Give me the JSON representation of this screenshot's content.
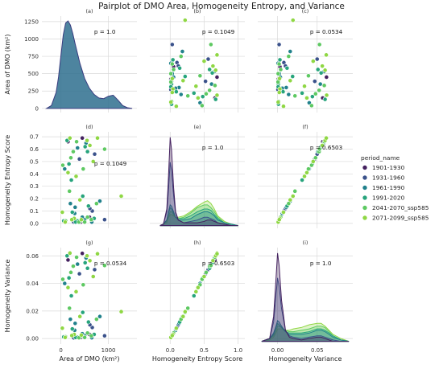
{
  "title": "Pairplot of DMO Area, Homogeneity Entropy, and Variance",
  "colors": {
    "kde": "#2e6e8e",
    "kde_line": "#3a3d80",
    "grid": "#d9d9d9",
    "series": [
      "#44215f",
      "#3b528b",
      "#21818c",
      "#27a47c",
      "#5ec962",
      "#8fd744"
    ]
  },
  "legend": {
    "title": "period_name",
    "items": [
      "1901-1930",
      "1931-1960",
      "1961-1990",
      "1991-2020",
      "2041-2070_ssp585",
      "2071-2099_ssp585"
    ]
  },
  "chart_data": {
    "type": "scatter",
    "variables": [
      "Area of DMO (km²)",
      "Homogeneity Entropy Score",
      "Homogeneity Variance"
    ],
    "rows": [
      {
        "ylabel": "Area of DMO (km²)",
        "yticks": [
          "0",
          "250",
          "500",
          "750",
          "1000",
          "1250"
        ],
        "ylim": [
          -60,
          1330
        ]
      },
      {
        "ylabel": "Homogeneity Entropy Score",
        "yticks": [
          "0.0",
          "0.1",
          "0.2",
          "0.3",
          "0.4",
          "0.5",
          "0.6",
          "0.7"
        ],
        "ylim": [
          -0.04,
          0.74
        ]
      },
      {
        "ylabel": "Homogeneity Variance",
        "yticks": [
          "0.00",
          "0.02",
          "0.04",
          "0.06"
        ],
        "ylim": [
          -0.004,
          0.066
        ]
      }
    ],
    "columns": [
      {
        "xlabel": "Area of DMO (km²)",
        "xticks": [
          "0",
          "1000"
        ],
        "xlim": [
          -400,
          1600
        ]
      },
      {
        "xlabel": "Homogeneity Entropy Score",
        "xticks": [
          "0.0",
          "0.5",
          "1.0"
        ],
        "xlim": [
          -0.3,
          1.1
        ]
      },
      {
        "xlabel": "Homogeneity Variance",
        "xticks": [
          "0.00",
          "0.05"
        ],
        "xlim": [
          -0.025,
          0.095
        ]
      }
    ],
    "panels": [
      {
        "label": "(a)",
        "annotation": "p = 1.0"
      },
      {
        "label": "(b)",
        "annotation": "p = 0.1049"
      },
      {
        "label": "(c)",
        "annotation": "p = 0.0534"
      },
      {
        "label": "(d)",
        "annotation": "p = 0.1049"
      },
      {
        "label": "(e)",
        "annotation": "p = 1.0"
      },
      {
        "label": "(f)",
        "annotation": "p = 0.6503"
      },
      {
        "label": "(g)",
        "annotation": "p = 0.0534"
      },
      {
        "label": "(h)",
        "annotation": "p = 0.6503"
      },
      {
        "label": "(i)",
        "annotation": "p = 1.0"
      }
    ],
    "kde_area": {
      "x": [
        -300,
        -200,
        -100,
        -50,
        0,
        50,
        100,
        150,
        200,
        250,
        300,
        400,
        500,
        600,
        700,
        800,
        900,
        1000,
        1100,
        1200,
        1300,
        1400,
        1500
      ],
      "y": [
        0,
        40,
        230,
        450,
        760,
        1060,
        1230,
        1260,
        1200,
        1080,
        930,
        650,
        430,
        290,
        200,
        150,
        140,
        175,
        190,
        120,
        40,
        10,
        0
      ]
    },
    "kde_entropy": {
      "x": [
        -0.15,
        -0.1,
        -0.05,
        -0.03,
        0,
        0.02,
        0.05,
        0.08,
        0.12,
        0.2,
        0.3,
        0.4,
        0.5,
        0.55,
        0.6,
        0.65,
        0.7,
        0.8,
        0.9,
        1.0
      ],
      "series": [
        {
          "values": [
            0,
            0.01,
            0.12,
            0.3,
            0.64,
            0.55,
            0.28,
            0.1,
            0.04,
            0.02,
            0.02,
            0.02,
            0.03,
            0.04,
            0.04,
            0.03,
            0.02,
            0.01,
            0,
            0
          ]
        },
        {
          "values": [
            0,
            0.01,
            0.1,
            0.22,
            0.46,
            0.4,
            0.22,
            0.09,
            0.04,
            0.02,
            0.03,
            0.04,
            0.06,
            0.06,
            0.05,
            0.04,
            0.02,
            0.01,
            0,
            0
          ]
        },
        {
          "values": [
            0,
            0.01,
            0.04,
            0.09,
            0.15,
            0.14,
            0.1,
            0.06,
            0.04,
            0.04,
            0.05,
            0.08,
            0.1,
            0.1,
            0.09,
            0.07,
            0.04,
            0.02,
            0.01,
            0
          ]
        },
        {
          "values": [
            0,
            0.01,
            0.04,
            0.08,
            0.13,
            0.12,
            0.09,
            0.06,
            0.05,
            0.05,
            0.07,
            0.1,
            0.12,
            0.12,
            0.11,
            0.08,
            0.05,
            0.02,
            0.01,
            0
          ]
        },
        {
          "values": [
            0,
            0.01,
            0.03,
            0.06,
            0.1,
            0.1,
            0.08,
            0.06,
            0.05,
            0.06,
            0.09,
            0.13,
            0.15,
            0.15,
            0.13,
            0.1,
            0.06,
            0.02,
            0.01,
            0
          ]
        },
        {
          "values": [
            0,
            0.01,
            0.02,
            0.05,
            0.08,
            0.08,
            0.07,
            0.06,
            0.06,
            0.07,
            0.1,
            0.14,
            0.17,
            0.18,
            0.16,
            0.12,
            0.07,
            0.03,
            0.01,
            0
          ]
        }
      ]
    },
    "kde_variance": {
      "x": [
        -0.02,
        -0.01,
        -0.005,
        -0.002,
        0,
        0.002,
        0.005,
        0.01,
        0.015,
        0.02,
        0.03,
        0.04,
        0.05,
        0.055,
        0.06,
        0.065,
        0.07,
        0.08,
        0.09
      ],
      "series": [
        {
          "values": [
            0,
            0.02,
            0.18,
            0.45,
            0.64,
            0.55,
            0.3,
            0.08,
            0.03,
            0.02,
            0.01,
            0.02,
            0.03,
            0.03,
            0.02,
            0.01,
            0,
            0,
            0
          ]
        },
        {
          "values": [
            0,
            0.02,
            0.14,
            0.33,
            0.46,
            0.4,
            0.24,
            0.08,
            0.04,
            0.03,
            0.02,
            0.03,
            0.04,
            0.04,
            0.03,
            0.02,
            0.01,
            0,
            0
          ]
        },
        {
          "values": [
            0,
            0.02,
            0.06,
            0.11,
            0.15,
            0.14,
            0.11,
            0.07,
            0.05,
            0.05,
            0.05,
            0.06,
            0.08,
            0.08,
            0.07,
            0.05,
            0.03,
            0.01,
            0
          ]
        },
        {
          "values": [
            0,
            0.02,
            0.05,
            0.1,
            0.13,
            0.12,
            0.1,
            0.07,
            0.06,
            0.06,
            0.06,
            0.07,
            0.09,
            0.09,
            0.08,
            0.06,
            0.04,
            0.01,
            0
          ]
        },
        {
          "values": [
            0,
            0.02,
            0.04,
            0.08,
            0.11,
            0.11,
            0.1,
            0.08,
            0.07,
            0.07,
            0.08,
            0.09,
            0.11,
            0.11,
            0.1,
            0.07,
            0.04,
            0.01,
            0
          ]
        },
        {
          "values": [
            0,
            0.01,
            0.03,
            0.06,
            0.09,
            0.09,
            0.09,
            0.08,
            0.08,
            0.09,
            0.1,
            0.12,
            0.13,
            0.13,
            0.11,
            0.08,
            0.05,
            0.02,
            0
          ]
        }
      ]
    },
    "points": [
      {
        "period": 0,
        "area": 450,
        "entropy": 0.69,
        "variance": 0.0618
      },
      {
        "period": 0,
        "area": 600,
        "entropy": 0.05,
        "variance": 0.003
      },
      {
        "period": 0,
        "area": 150,
        "entropy": 0.66,
        "variance": 0.057
      },
      {
        "period": 0,
        "area": 420,
        "entropy": 0.01,
        "variance": 0.0008
      },
      {
        "period": 1,
        "area": 390,
        "entropy": 0.52,
        "variance": 0.047
      },
      {
        "period": 1,
        "area": 920,
        "entropy": 0.03,
        "variance": 0.002
      },
      {
        "period": 1,
        "area": 660,
        "entropy": 0.1,
        "variance": 0.008
      },
      {
        "period": 1,
        "area": 400,
        "entropy": 0.02,
        "variance": 0.0015
      },
      {
        "period": 1,
        "area": 710,
        "entropy": 0.56,
        "variance": 0.05
      },
      {
        "period": 1,
        "area": 270,
        "entropy": 0.01,
        "variance": 0.0005
      },
      {
        "period": 1,
        "area": 610,
        "entropy": 0.12,
        "variance": 0.01
      },
      {
        "period": 2,
        "area": 300,
        "entropy": 0.13,
        "variance": 0.011
      },
      {
        "period": 2,
        "area": 350,
        "entropy": 0.61,
        "variance": 0.054
      },
      {
        "period": 2,
        "area": 500,
        "entropy": 0.03,
        "variance": 0.0022
      },
      {
        "period": 2,
        "area": 80,
        "entropy": 0.44,
        "variance": 0.04
      },
      {
        "period": 2,
        "area": 390,
        "entropy": 0.02,
        "variance": 0.0012
      },
      {
        "period": 2,
        "area": 530,
        "entropy": 0.65,
        "variance": 0.0585
      },
      {
        "period": 2,
        "area": 200,
        "entropy": 0.16,
        "variance": 0.014
      },
      {
        "period": 2,
        "area": 450,
        "entropy": 0.05,
        "variance": 0.0035
      },
      {
        "period": 2,
        "area": 820,
        "entropy": 0.18,
        "variance": 0.016
      },
      {
        "period": 2,
        "area": 290,
        "entropy": 0.08,
        "variance": 0.006
      },
      {
        "period": 2,
        "area": 650,
        "entropy": 0.01,
        "variance": 0.0006
      },
      {
        "period": 3,
        "area": 170,
        "entropy": 0.48,
        "variance": 0.044
      },
      {
        "period": 3,
        "area": 410,
        "entropy": 0.02,
        "variance": 0.0015
      },
      {
        "period": 3,
        "area": 560,
        "entropy": 0.58,
        "variance": 0.051
      },
      {
        "period": 3,
        "area": 240,
        "entropy": 0.09,
        "variance": 0.007
      },
      {
        "period": 3,
        "area": 350,
        "entropy": 0.02,
        "variance": 0.001
      },
      {
        "period": 3,
        "area": 130,
        "entropy": 0.67,
        "variance": 0.06
      },
      {
        "period": 3,
        "area": 700,
        "entropy": 0.04,
        "variance": 0.003
      },
      {
        "period": 3,
        "area": 460,
        "entropy": 0.22,
        "variance": 0.019
      },
      {
        "period": 3,
        "area": 310,
        "entropy": 0.01,
        "variance": 0.0008
      },
      {
        "period": 3,
        "area": 220,
        "entropy": 0.35,
        "variance": 0.031
      },
      {
        "period": 3,
        "area": 580,
        "entropy": 0.14,
        "variance": 0.012
      },
      {
        "period": 3,
        "area": 60,
        "entropy": 0.02,
        "variance": 0.0012
      },
      {
        "period": 3,
        "area": 510,
        "entropy": 0.62,
        "variance": 0.055
      },
      {
        "period": 4,
        "area": 40,
        "entropy": 0.47,
        "variance": 0.043
      },
      {
        "period": 4,
        "area": 500,
        "entropy": 0.01,
        "variance": 0.0008
      },
      {
        "period": 4,
        "area": 330,
        "entropy": 0.66,
        "variance": 0.059
      },
      {
        "period": 4,
        "area": 180,
        "entropy": 0.26,
        "variance": 0.022
      },
      {
        "period": 4,
        "area": 640,
        "entropy": 0.03,
        "variance": 0.002
      },
      {
        "period": 4,
        "area": 210,
        "entropy": 0.53,
        "variance": 0.048
      },
      {
        "period": 4,
        "area": 750,
        "entropy": 0.16,
        "variance": 0.014
      },
      {
        "period": 4,
        "area": 100,
        "entropy": 0.02,
        "variance": 0.0013
      },
      {
        "period": 4,
        "area": 470,
        "entropy": 0.44,
        "variance": 0.039
      },
      {
        "period": 4,
        "area": 380,
        "entropy": 0.01,
        "variance": 0.0006
      },
      {
        "period": 4,
        "area": 260,
        "entropy": 0.58,
        "variance": 0.0525
      },
      {
        "period": 4,
        "area": 920,
        "entropy": 0.6,
        "variance": 0.053
      },
      {
        "period": 4,
        "area": 560,
        "entropy": 0.05,
        "variance": 0.004
      },
      {
        "period": 5,
        "area": 1270,
        "entropy": 0.22,
        "variance": 0.0195
      },
      {
        "period": 5,
        "area": 190,
        "entropy": 0.69,
        "variance": 0.062
      },
      {
        "period": 5,
        "area": 430,
        "entropy": 0.03,
        "variance": 0.0025
      },
      {
        "period": 5,
        "area": 550,
        "entropy": 0.67,
        "variance": 0.06
      },
      {
        "period": 5,
        "area": 320,
        "entropy": 0.38,
        "variance": 0.034
      },
      {
        "period": 5,
        "area": 90,
        "entropy": 0.01,
        "variance": 0.0008
      },
      {
        "period": 5,
        "area": 610,
        "entropy": 0.63,
        "variance": 0.0565
      },
      {
        "period": 5,
        "area": 280,
        "entropy": 0.04,
        "variance": 0.003
      },
      {
        "period": 5,
        "area": 770,
        "entropy": 0.69,
        "variance": 0.0615
      },
      {
        "period": 5,
        "area": 400,
        "entropy": 0.19,
        "variance": 0.016
      },
      {
        "period": 5,
        "area": 230,
        "entropy": 0.03,
        "variance": 0.0022
      },
      {
        "period": 5,
        "area": 30,
        "entropy": 0.09,
        "variance": 0.0075
      },
      {
        "period": 5,
        "area": 680,
        "entropy": 0.5,
        "variance": 0.045
      },
      {
        "period": 5,
        "area": 150,
        "entropy": 0.41,
        "variance": 0.037
      }
    ]
  }
}
